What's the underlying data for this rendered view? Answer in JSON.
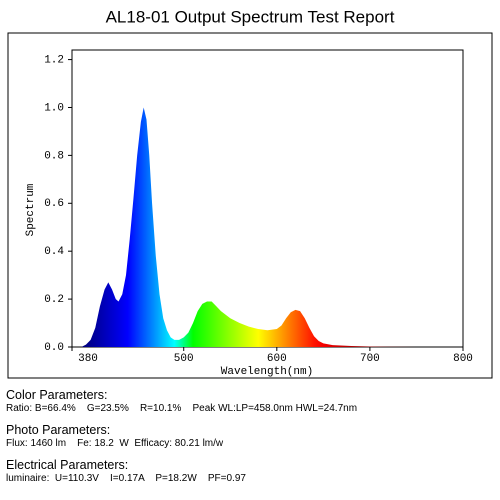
{
  "chart_data": {
    "type": "area",
    "title": "AL18-01 Output Spectrum Test Report",
    "xlabel": "Wavelength(nm)",
    "ylabel": "Spectrum",
    "x": [
      380,
      390,
      395,
      400,
      405,
      410,
      415,
      419,
      423,
      427,
      430,
      434,
      438,
      442,
      446,
      450,
      454,
      457,
      460,
      463,
      466,
      470,
      474,
      478,
      482,
      486,
      490,
      495,
      500,
      505,
      510,
      515,
      520,
      525,
      530,
      535,
      540,
      550,
      560,
      570,
      580,
      590,
      600,
      605,
      610,
      615,
      620,
      625,
      630,
      635,
      640,
      645,
      650,
      660,
      680,
      700,
      720,
      750,
      800
    ],
    "values": [
      0,
      0,
      0.01,
      0.03,
      0.08,
      0.17,
      0.24,
      0.27,
      0.24,
      0.2,
      0.19,
      0.22,
      0.3,
      0.45,
      0.62,
      0.8,
      0.94,
      1.0,
      0.95,
      0.8,
      0.6,
      0.38,
      0.22,
      0.12,
      0.07,
      0.04,
      0.03,
      0.03,
      0.04,
      0.06,
      0.1,
      0.15,
      0.18,
      0.19,
      0.19,
      0.17,
      0.15,
      0.12,
      0.1,
      0.085,
      0.075,
      0.07,
      0.075,
      0.09,
      0.12,
      0.145,
      0.155,
      0.15,
      0.12,
      0.08,
      0.045,
      0.025,
      0.015,
      0.008,
      0.004,
      0.002,
      0.001,
      0,
      0
    ],
    "xlim": [
      380,
      800
    ],
    "xticks": [
      380,
      500,
      600,
      700,
      800
    ],
    "ylim": [
      0,
      1.24
    ],
    "yticks": [
      {
        "value": 0,
        "label": "0.0"
      },
      0.2,
      0.4,
      0.6,
      0.8,
      {
        "value": 1,
        "label": "1.0"
      },
      1.2
    ]
  },
  "report": [
    {
      "heading": "Color Parameters:",
      "line": "Ratio: B=66.4%    G=23.5%    R=10.1%    Peak WL:LP=458.0nm HWL=24.7nm"
    },
    {
      "heading": "Photo Parameters:",
      "line": "Flux: 1460 lm    Fe: 18.2  W  Efficacy: 80.21 lm/w"
    },
    {
      "heading": "Electrical Parameters:",
      "line": "luminaire:  U=110.3V    I=0.17A    P=18.2W    PF=0.97"
    }
  ]
}
